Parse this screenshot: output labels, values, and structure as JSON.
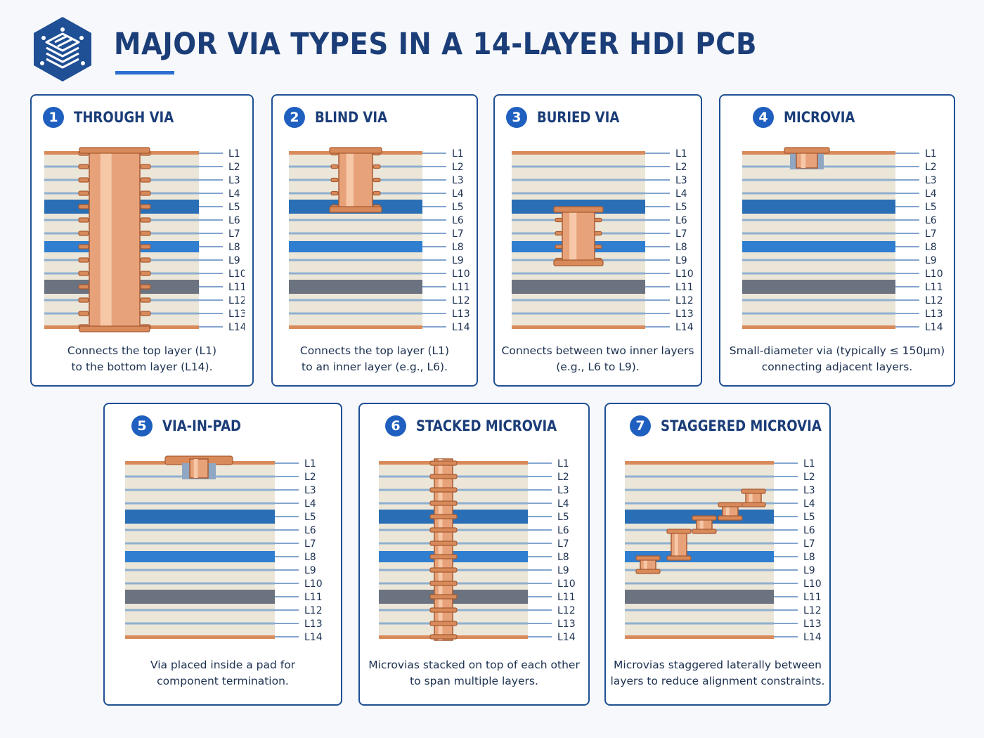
{
  "title": "MAJOR VIA TYPES IN A 14-LAYER HDI PCB",
  "layer_labels": [
    "L1",
    "L2",
    "L3",
    "L4",
    "L5",
    "L6",
    "L7",
    "L8",
    "L9",
    "L10",
    "L11",
    "L12",
    "L13",
    "L14"
  ],
  "colors": {
    "title": "#1b3d78",
    "accent": "#1f5fbf",
    "copper": "#d98a5a",
    "dielectric": "#ece6d8",
    "signal_layer": "#2f7ed0",
    "plane_dark": "#6b7280",
    "card_border": "#1f4f94"
  },
  "logo_icon": "pcb-circuit-hexagon-icon",
  "cards": [
    {
      "number": "1",
      "title": "THROUGH VIA",
      "via_type": "through",
      "description": [
        "Connects the top layer (L1)",
        "to the bottom layer (L14)."
      ]
    },
    {
      "number": "2",
      "title": "BLIND VIA",
      "via_type": "blind",
      "description": [
        "Connects the top layer (L1)",
        "to an inner layer (e.g., L6)."
      ]
    },
    {
      "number": "3",
      "title": "BURIED VIA",
      "via_type": "buried",
      "description": [
        "Connects between two inner layers",
        "(e.g., L6 to L9)."
      ]
    },
    {
      "number": "4",
      "title": "MICROVIA",
      "via_type": "microvia",
      "description": [
        "Small-diameter via (typically ≤ 150µm)",
        "connecting adjacent layers."
      ]
    },
    {
      "number": "5",
      "title": "VIA-IN-PAD",
      "via_type": "via-in-pad",
      "description": [
        "Via placed inside a pad for",
        "component termination."
      ]
    },
    {
      "number": "6",
      "title": "STACKED MICROVIA",
      "via_type": "stacked",
      "description": [
        "Microvias stacked on top of each other",
        "to span multiple layers."
      ]
    },
    {
      "number": "7",
      "title": "STAGGERED MICROVIA",
      "via_type": "staggered",
      "description": [
        "Microvias staggered laterally between",
        "layers to reduce alignment constraints."
      ]
    }
  ]
}
